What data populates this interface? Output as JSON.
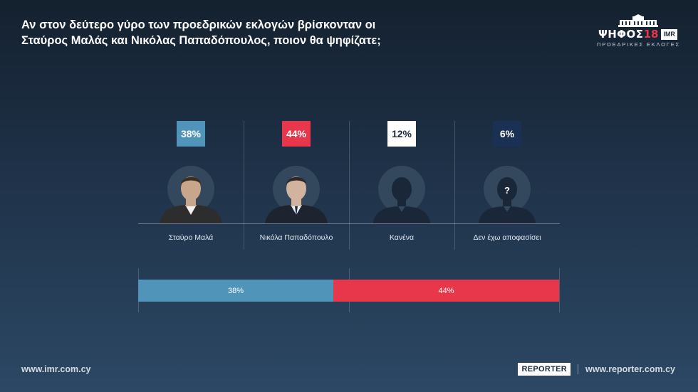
{
  "title": {
    "line1": "Αν στον δεύτερο γύρο των προεδρικών εκλογών βρίσκονταν οι",
    "line2": "Σταύρος Μαλάς και Νικόλας Παπαδόπουλος, ποιον θα ψηφίζατε;"
  },
  "logo": {
    "word": "ΨΗΦΟΣ",
    "number": "18",
    "imr": "IMR",
    "subtitle": "ΠΡΟΕΔΡΙΚΕΣ ΕΚΛΟΓΕΣ"
  },
  "colors": {
    "malas": "#5194ba",
    "papadopoulos": "#e8364a",
    "none": "#ffffff",
    "undecided": "#1b3153"
  },
  "chart_data": {
    "type": "bar",
    "categories": [
      "Σταύρο Μαλά",
      "Νικόλα Παπαδόπουλο",
      "Κανένα",
      "Δεν έχω αποφασίσει"
    ],
    "values": [
      38,
      44,
      12,
      6
    ],
    "value_labels": [
      "38%",
      "44%",
      "12%",
      "6%"
    ],
    "unit": "%",
    "stacked_bar": {
      "segments": [
        {
          "value": 38,
          "label": "38%"
        },
        {
          "value": 44,
          "label": "44%"
        }
      ],
      "scale_max": 82
    }
  },
  "footer": {
    "left_url": "www.imr.com.cy",
    "badge": "REPORTER",
    "right_url": "www.reporter.com.cy"
  }
}
